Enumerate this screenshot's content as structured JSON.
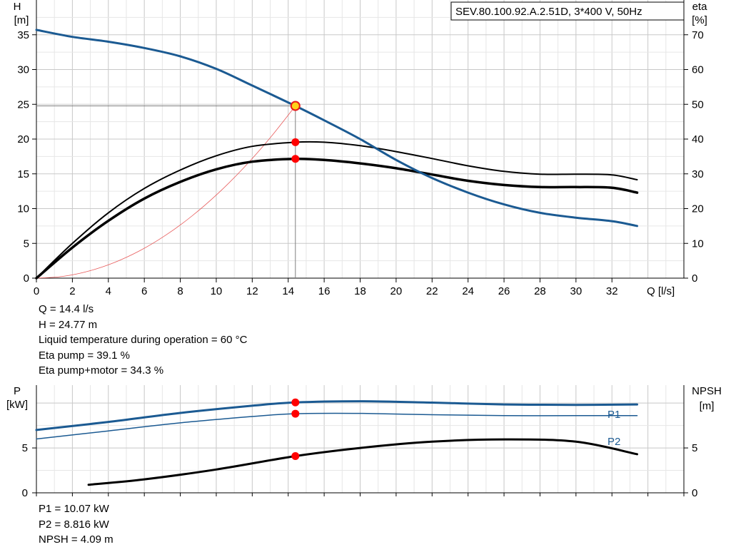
{
  "header": {
    "model_label": "SEV.80.100.92.A.2.51D, 3*400  V, 50Hz"
  },
  "chart_data": [
    {
      "type": "line",
      "x_axis": {
        "label": "Q [l/s]",
        "range": [
          0,
          36
        ],
        "ticks": [
          0,
          2,
          4,
          6,
          8,
          10,
          12,
          14,
          16,
          18,
          20,
          22,
          24,
          26,
          28,
          30,
          32
        ]
      },
      "y_left": {
        "label_line1": "H",
        "label_line2": "[m]",
        "range": [
          0,
          40
        ],
        "ticks": [
          0,
          5,
          10,
          15,
          20,
          25,
          30,
          35
        ]
      },
      "y_right": {
        "label_line1": "eta",
        "label_line2": "[%]",
        "range": [
          0,
          80
        ],
        "ticks": [
          0,
          10,
          20,
          30,
          40,
          50,
          60,
          70
        ]
      },
      "grid": true,
      "series": [
        {
          "axis": "left",
          "color": "#1b5a92",
          "width": 3,
          "points": [
            [
              0,
              35.7
            ],
            [
              2,
              34.7
            ],
            [
              4,
              34.0
            ],
            [
              6,
              33.1
            ],
            [
              8,
              31.9
            ],
            [
              10,
              30.1
            ],
            [
              12,
              27.7
            ],
            [
              14.4,
              24.77
            ],
            [
              16,
              22.7
            ],
            [
              18,
              20.0
            ],
            [
              20,
              17.0
            ],
            [
              22,
              14.4
            ],
            [
              24,
              12.3
            ],
            [
              26,
              10.6
            ],
            [
              28,
              9.4
            ],
            [
              30,
              8.7
            ],
            [
              32,
              8.2
            ],
            [
              33.4,
              7.5
            ]
          ]
        },
        {
          "axis": "right",
          "color": "#000000",
          "width": 2,
          "points": [
            [
              0,
              0
            ],
            [
              2,
              10
            ],
            [
              4,
              18.8
            ],
            [
              6,
              25.8
            ],
            [
              8,
              31.1
            ],
            [
              10,
              35.2
            ],
            [
              12,
              37.9
            ],
            [
              14.4,
              39.1
            ],
            [
              16,
              39.1
            ],
            [
              18,
              38.1
            ],
            [
              20,
              36.4
            ],
            [
              22,
              34.4
            ],
            [
              24,
              32.3
            ],
            [
              26,
              30.7
            ],
            [
              28,
              29.9
            ],
            [
              30,
              29.9
            ],
            [
              32,
              29.7
            ],
            [
              33.4,
              28.3
            ]
          ]
        },
        {
          "axis": "right",
          "color": "#000000",
          "width": 3.5,
          "points": [
            [
              0,
              0
            ],
            [
              2,
              8.8
            ],
            [
              4,
              16.5
            ],
            [
              6,
              22.9
            ],
            [
              8,
              27.7
            ],
            [
              10,
              31.3
            ],
            [
              12,
              33.5
            ],
            [
              14.4,
              34.3
            ],
            [
              16,
              34.0
            ],
            [
              18,
              33.0
            ],
            [
              20,
              31.6
            ],
            [
              22,
              29.8
            ],
            [
              24,
              28.0
            ],
            [
              26,
              26.8
            ],
            [
              28,
              26.2
            ],
            [
              30,
              26.2
            ],
            [
              32,
              26.0
            ],
            [
              33.4,
              24.6
            ]
          ]
        },
        {
          "axis": "left",
          "color": "#e85a5a",
          "width": 0.8,
          "points": [
            [
              0,
              0
            ],
            [
              1.44,
              0.25
            ],
            [
              2.88,
              0.99
            ],
            [
              4.32,
              2.23
            ],
            [
              5.76,
              3.96
            ],
            [
              7.2,
              6.19
            ],
            [
              8.64,
              8.92
            ],
            [
              10.08,
              12.14
            ],
            [
              11.52,
              15.85
            ],
            [
              12.96,
              20.06
            ],
            [
              14.4,
              24.77
            ]
          ]
        }
      ],
      "duty_point": {
        "x": 14.4,
        "h": 24.77,
        "eta_pump": 39.1,
        "eta_total": 34.3
      },
      "readouts": [
        "Q = 14.4 l/s",
        "H = 24.77 m",
        "Liquid temperature during operation = 60 °C",
        "Eta pump = 39.1 %",
        "Eta pump+motor = 34.3 %"
      ]
    },
    {
      "type": "line",
      "x_axis": {
        "range": [
          0,
          36
        ]
      },
      "y_left": {
        "label_line1": "P",
        "label_line2": "[kW]",
        "range": [
          0,
          12
        ],
        "ticks": [
          0,
          5
        ]
      },
      "y_right": {
        "label_line1": "NPSH",
        "label_line2": "[m]",
        "range": [
          0,
          12
        ],
        "ticks": [
          0,
          5
        ]
      },
      "series": [
        {
          "name": "P1",
          "axis": "left",
          "color": "#1b5a92",
          "width": 3,
          "points": [
            [
              0,
              7.0
            ],
            [
              4,
              7.9
            ],
            [
              8,
              8.9
            ],
            [
              12,
              9.7
            ],
            [
              14.4,
              10.07
            ],
            [
              18,
              10.2
            ],
            [
              22,
              10.05
            ],
            [
              26,
              9.85
            ],
            [
              30,
              9.8
            ],
            [
              33.4,
              9.85
            ]
          ]
        },
        {
          "name": "P2",
          "axis": "left",
          "color": "#1b5a92",
          "width": 1.5,
          "points": [
            [
              0,
              6.0
            ],
            [
              4,
              6.9
            ],
            [
              8,
              7.8
            ],
            [
              12,
              8.5
            ],
            [
              14.4,
              8.816
            ],
            [
              18,
              8.85
            ],
            [
              22,
              8.7
            ],
            [
              26,
              8.6
            ],
            [
              30,
              8.6
            ],
            [
              33.4,
              8.6
            ]
          ]
        },
        {
          "axis": "right",
          "color": "#000000",
          "width": 3,
          "points": [
            [
              2.9,
              0.9
            ],
            [
              6,
              1.5
            ],
            [
              10,
              2.6
            ],
            [
              14.4,
              4.09
            ],
            [
              18,
              5.0
            ],
            [
              22,
              5.7
            ],
            [
              26,
              5.95
            ],
            [
              30,
              5.7
            ],
            [
              33.4,
              4.3
            ]
          ]
        }
      ],
      "duty_point": {
        "x": 14.4,
        "p1": 10.07,
        "p2": 8.816,
        "npsh": 4.09
      },
      "readouts": [
        "P1 = 10.07 kW",
        "P2 = 8.816 kW",
        "NPSH = 4.09 m"
      ]
    }
  ]
}
